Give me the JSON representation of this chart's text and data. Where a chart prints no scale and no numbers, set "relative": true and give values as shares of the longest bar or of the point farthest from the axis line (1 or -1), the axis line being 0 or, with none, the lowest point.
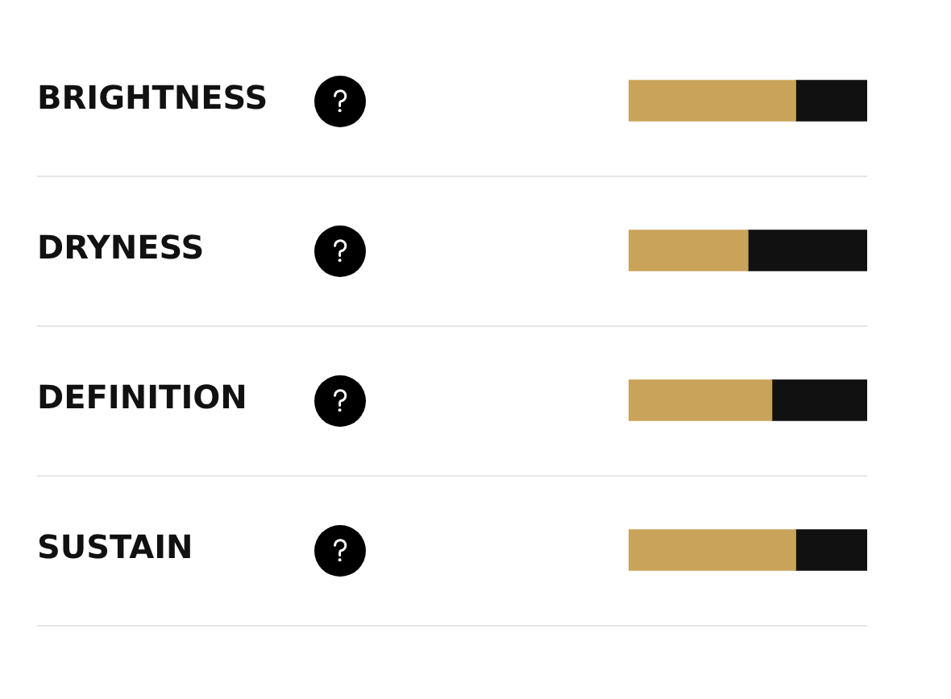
{
  "chart_data": {
    "type": "bar",
    "orientation": "horizontal",
    "stacked": true,
    "relative": true,
    "categories": [
      "BRIGHTNESS",
      "DRYNESS",
      "DEFINITION",
      "SUSTAIN"
    ],
    "series": [
      {
        "color": "#c9a35a",
        "values": [
          0.7,
          0.5,
          0.6,
          0.7
        ]
      },
      {
        "color": "#111111",
        "values": [
          0.3,
          0.5,
          0.4,
          0.3
        ]
      }
    ],
    "grid": "y"
  }
}
